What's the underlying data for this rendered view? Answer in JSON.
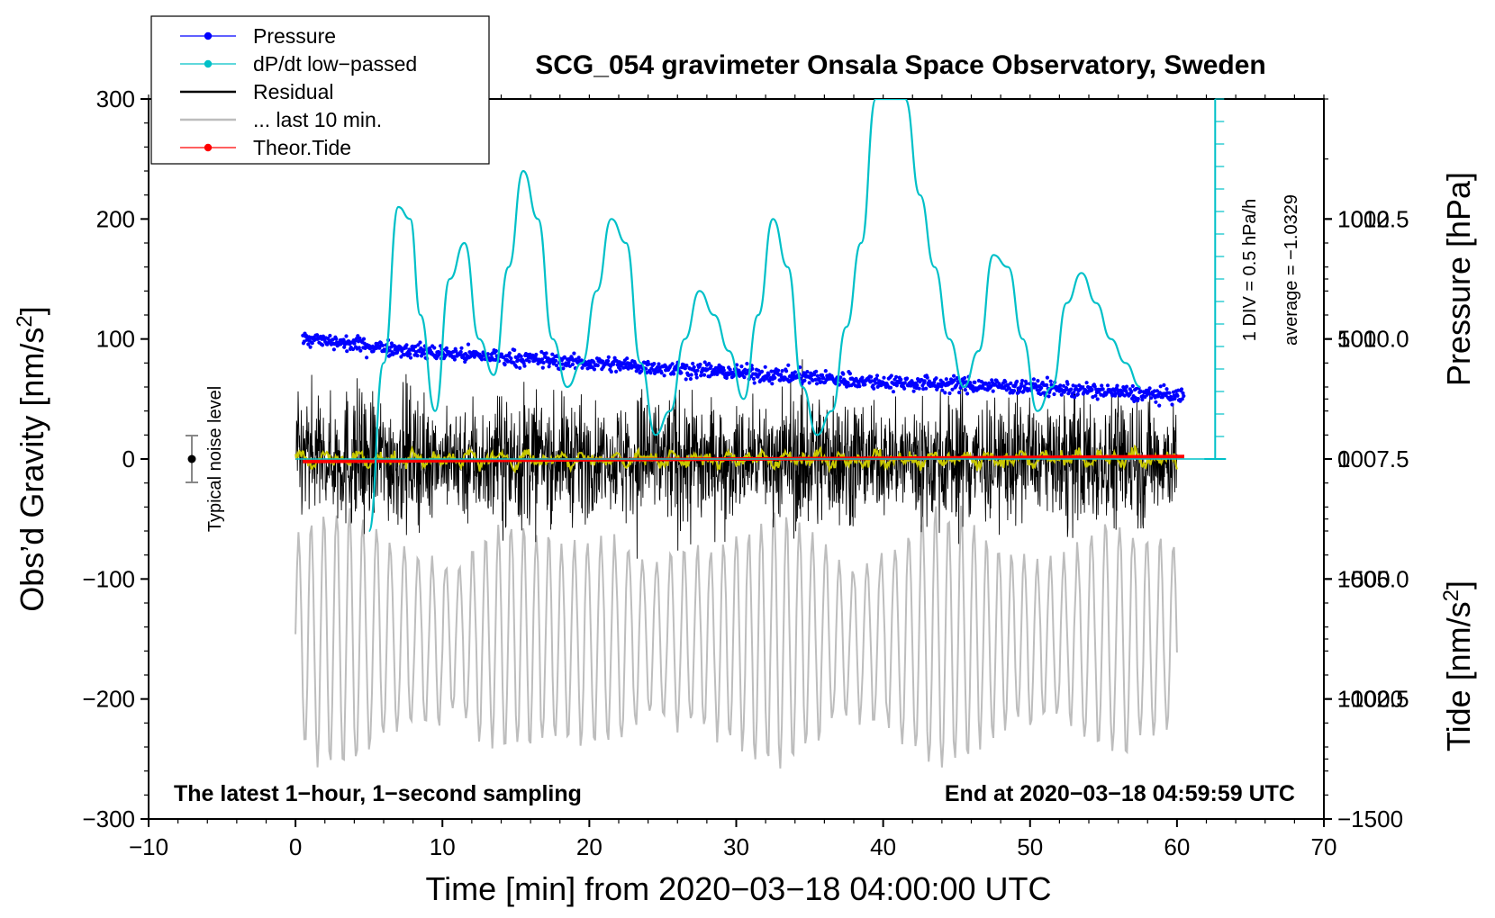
{
  "colors": {
    "pressure": "#0000ff",
    "dpdt": "#00c0c8",
    "residual": "#000000",
    "last10": "#bdbdbd",
    "tide": "#ff0000",
    "filtered": "#c8c800"
  },
  "chart_data": {
    "type": "line",
    "title": "SCG_054 gravimeter Onsala Space Observatory, Sweden",
    "xlabel": "Time [min] from 2020−03−18 04:00:00 UTC",
    "ylabel_left_main": "Obs’d Gravity [nm/s",
    "ylabel_left_sup": "2",
    "ylabel_left_end": "]",
    "ylabel_right_top": "Pressure [hPa]",
    "ylabel_right_bottom_main": "Tide [nm/s",
    "ylabel_right_bottom_sup": "2",
    "ylabel_right_bottom_end": "]",
    "xlim": [
      -10,
      70
    ],
    "ylim_left": [
      -300,
      300
    ],
    "ylim_pressure": [
      1000,
      1015
    ],
    "ylim_tide": [
      -1500,
      1500
    ],
    "x_ticks": [
      "−10",
      "0",
      "10",
      "20",
      "30",
      "40",
      "50",
      "60",
      "70"
    ],
    "y_ticks_left": [
      "300",
      "200",
      "100",
      "0",
      "−100",
      "−200",
      "−300"
    ],
    "y_ticks_pressure": [
      "1012.5",
      "1010.0",
      "1007.5",
      "1005.0",
      "1002.5"
    ],
    "y_ticks_tide": [
      "1000",
      "500",
      "0",
      "−500",
      "−1000",
      "−1500"
    ],
    "legend": [
      {
        "label": "Pressure",
        "color_key": "pressure",
        "marker": true
      },
      {
        "label": "dP/dt low−passed",
        "color_key": "dpdt",
        "marker": true
      },
      {
        "label": "Residual",
        "color_key": "residual",
        "marker": false
      },
      {
        "label": "... last 10 min.",
        "color_key": "last10",
        "marker": false
      },
      {
        "label": "Theor.Tide",
        "color_key": "tide",
        "marker": true
      }
    ],
    "annotations": {
      "bottom_left": "The latest 1−hour, 1−second sampling",
      "bottom_right": "End at 2020−03−18 04:59:59 UTC",
      "noise": "Typical noise level",
      "div": "1 DIV = 0.5 hPa/h",
      "average": "average = −1.0329"
    },
    "series": [
      {
        "name": "Pressure",
        "axis": "pressure",
        "x": [
          0.5,
          10,
          20,
          30,
          40,
          50,
          60.5
        ],
        "values": [
          1010.0,
          1009.7,
          1009.5,
          1009.3,
          1009.1,
          1009.0,
          1008.8
        ]
      },
      {
        "name": "dP/dt low-passed",
        "axis": "left",
        "x": [
          5,
          6,
          7,
          7.8,
          8.5,
          9.5,
          10.5,
          11.5,
          12.5,
          13.5,
          14.5,
          15.5,
          16.5,
          17.5,
          18.5,
          19.5,
          20.5,
          21.5,
          22.5,
          23.5,
          24.5,
          25.5,
          26.5,
          27.5,
          28.5,
          29.5,
          30.5,
          31.5,
          32.5,
          33.5,
          34.5,
          35.5,
          36.5,
          37.5,
          38.5,
          39.5,
          40.5,
          41.5,
          42.5,
          43.5,
          44.5,
          45.5,
          46.5,
          47.5,
          48.5,
          49.5,
          50.5,
          51.5,
          52.5,
          53.5,
          54.5,
          55.5,
          56.5,
          57.5
        ],
        "values": [
          -60,
          80,
          210,
          200,
          120,
          40,
          150,
          180,
          100,
          70,
          160,
          240,
          200,
          100,
          60,
          80,
          140,
          200,
          180,
          80,
          20,
          40,
          100,
          140,
          120,
          90,
          50,
          120,
          200,
          160,
          60,
          20,
          40,
          110,
          180,
          300,
          300,
          300,
          220,
          160,
          100,
          60,
          90,
          170,
          160,
          100,
          40,
          60,
          130,
          155,
          130,
          100,
          80,
          60
        ]
      },
      {
        "name": "Theor.Tide",
        "axis": "tide",
        "x": [
          0.5,
          60.5
        ],
        "values": [
          -10,
          10
        ]
      }
    ]
  }
}
